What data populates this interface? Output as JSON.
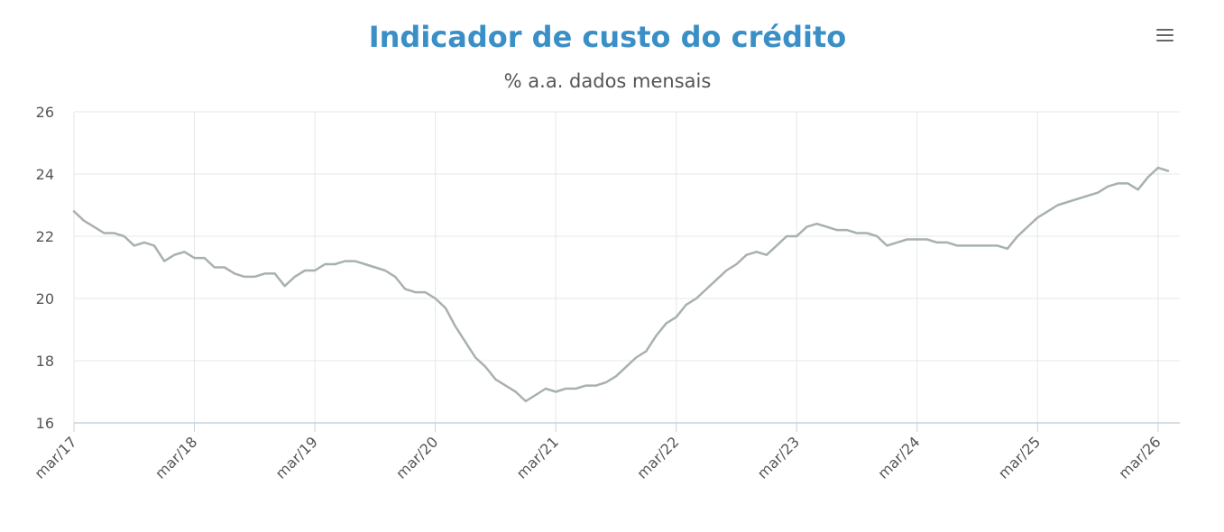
{
  "chart_data": {
    "type": "line",
    "title": "Indicador de custo do crédito",
    "subtitle": "% a.a. dados mensais",
    "xlabel": "",
    "ylabel": "",
    "ylim": [
      16,
      26
    ],
    "yticks": [
      "16",
      "18",
      "20",
      "22",
      "24",
      "26"
    ],
    "xticks": [
      "mar/17",
      "mar/18",
      "mar/19",
      "mar/20",
      "mar/21",
      "mar/22",
      "mar/23",
      "mar/24",
      "mar/25",
      "mar/26"
    ],
    "x_start": "2017-03",
    "x_end": "2026-03",
    "grid": true,
    "line_color": "#a8b0b0",
    "series": [
      {
        "values": [
          22.8,
          22.5,
          22.3,
          22.1,
          22.1,
          22.0,
          21.7,
          21.8,
          21.7,
          21.2,
          21.4,
          21.5,
          21.3,
          21.3,
          21.0,
          21.0,
          20.8,
          20.7,
          20.7,
          20.8,
          20.8,
          20.4,
          20.7,
          20.9,
          20.9,
          21.1,
          21.1,
          21.2,
          21.2,
          21.1,
          21.0,
          20.9,
          20.7,
          20.3,
          20.2,
          20.2,
          20.0,
          19.7,
          19.1,
          18.6,
          18.1,
          17.8,
          17.4,
          17.2,
          17.0,
          16.7,
          16.9,
          17.1,
          17.0,
          17.1,
          17.1,
          17.2,
          17.2,
          17.3,
          17.5,
          17.8,
          18.1,
          18.3,
          18.8,
          19.2,
          19.4,
          19.8,
          20.0,
          20.3,
          20.6,
          20.9,
          21.1,
          21.4,
          21.5,
          21.4,
          21.7,
          22.0,
          22.0,
          22.3,
          22.4,
          22.3,
          22.2,
          22.2,
          22.1,
          22.1,
          22.0,
          21.7,
          21.8,
          21.9,
          21.9,
          21.9,
          21.8,
          21.8,
          21.7,
          21.7,
          21.7,
          21.7,
          21.7,
          21.6,
          22.0,
          22.3,
          22.6,
          22.8,
          23.0,
          23.1,
          23.2,
          23.3,
          23.4,
          23.6,
          23.7,
          23.7,
          23.5,
          23.9,
          24.2,
          24.1
        ]
      }
    ]
  }
}
